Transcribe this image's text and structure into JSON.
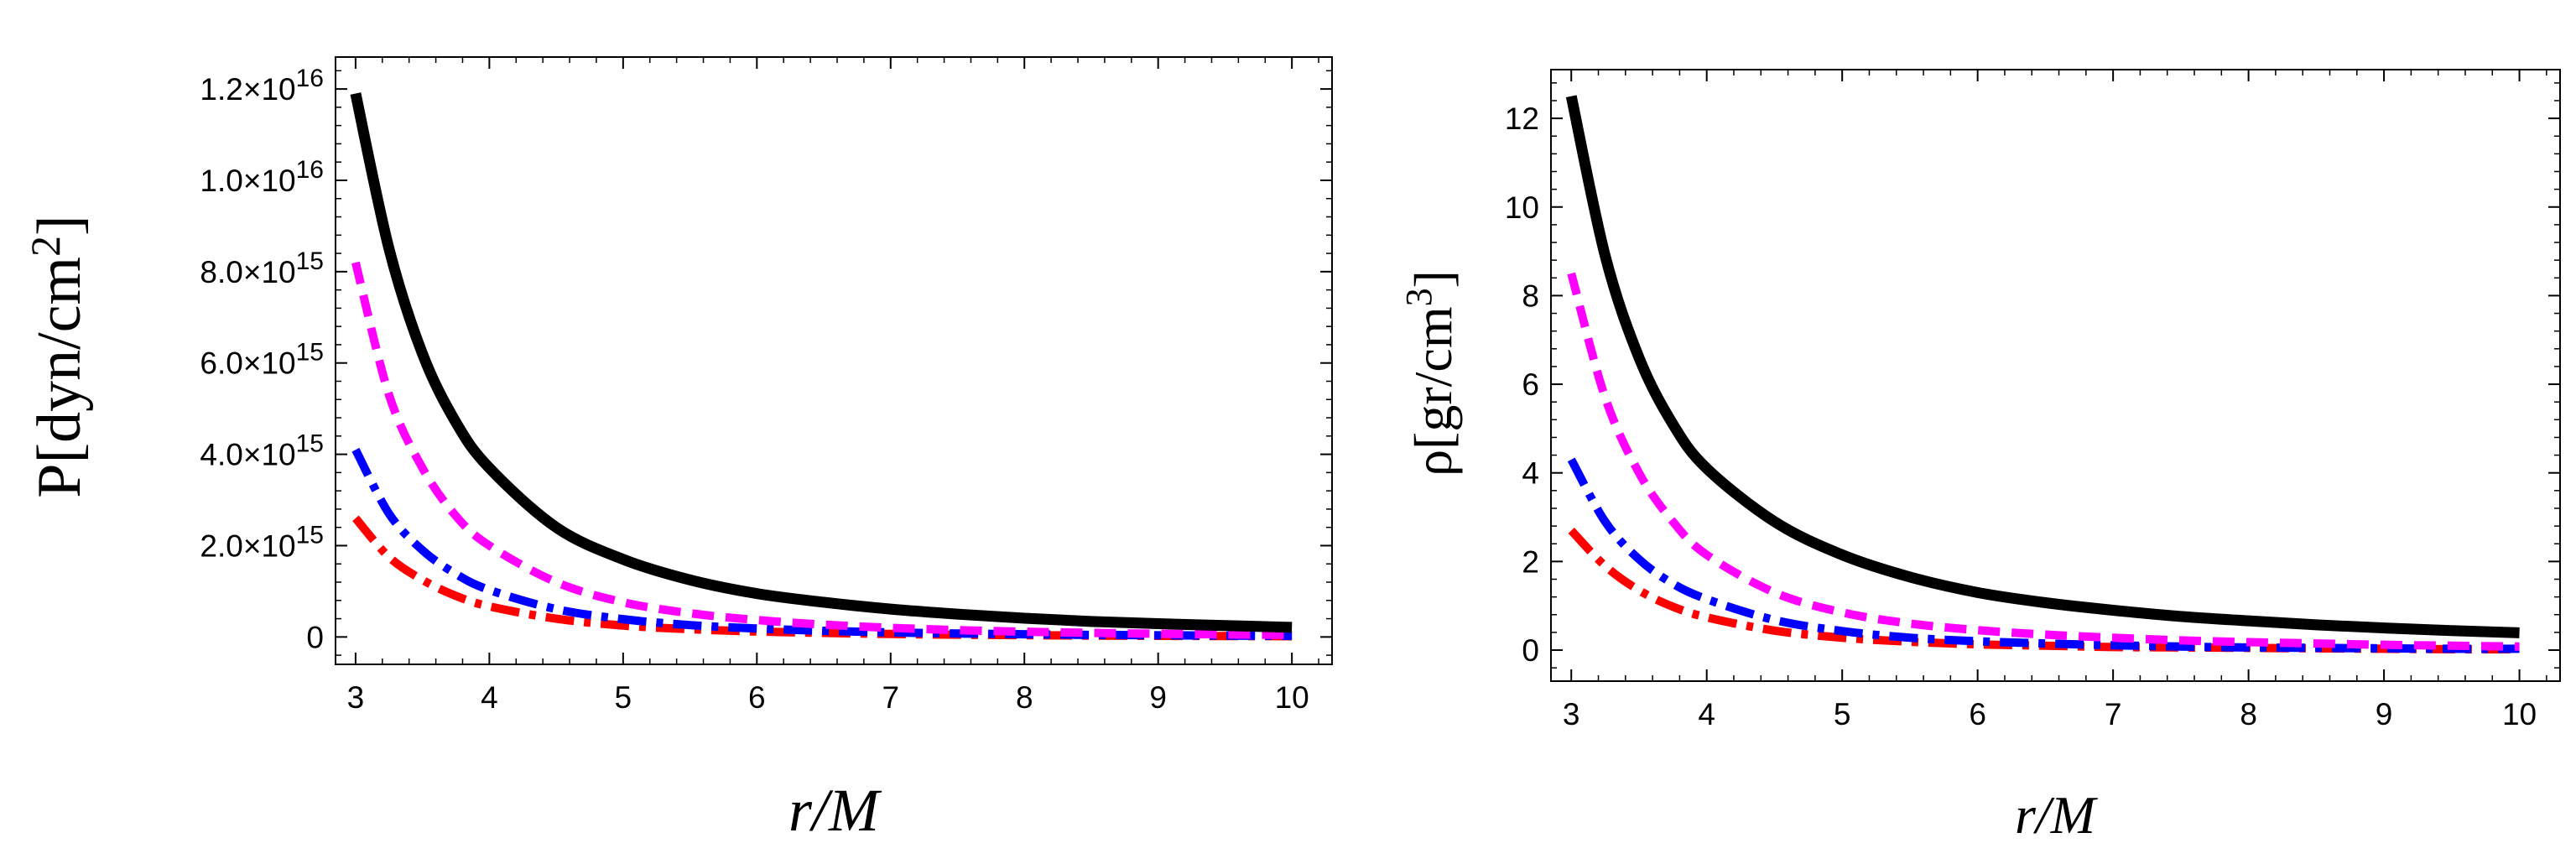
{
  "chart_data": [
    {
      "type": "line",
      "xlabel": "r/M",
      "ylabel": {
        "main": "P[dyn/cm",
        "sup": "2",
        "tail": "]"
      },
      "xlim": [
        2.85,
        10.3
      ],
      "ylim": [
        -600000000000000.0,
        1.27e+16
      ],
      "xticks": [
        3,
        4,
        5,
        6,
        7,
        8,
        9,
        10
      ],
      "xtick_labels": [
        "3",
        "4",
        "5",
        "6",
        "7",
        "8",
        "9",
        "10"
      ],
      "yticks": [
        0,
        2000000000000000.0,
        4000000000000000.0,
        6000000000000000.0,
        8000000000000000.0,
        1e+16,
        1.2e+16
      ],
      "ytick_labels": [
        {
          "mant": "0",
          "exp": ""
        },
        {
          "mant": "2.0×10",
          "exp": "15"
        },
        {
          "mant": "4.0×10",
          "exp": "15"
        },
        {
          "mant": "6.0×10",
          "exp": "15"
        },
        {
          "mant": "8.0×10",
          "exp": "15"
        },
        {
          "mant": "1.0×10",
          "exp": "16"
        },
        {
          "mant": "1.2×10",
          "exp": "16"
        }
      ],
      "x": [
        3,
        3.25,
        3.5,
        3.75,
        4,
        4.5,
        5,
        5.5,
        6,
        6.5,
        7,
        7.5,
        8,
        8.5,
        9,
        9.5,
        10
      ],
      "series": [
        {
          "color": "#000000",
          "style": "solid",
          "values": [
            1.19e+16,
            8500000000000000.0,
            6200000000000000.0,
            4700000000000000.0,
            3700000000000000.0,
            2400000000000000.0,
            1700000000000000.0,
            1250000000000000.0,
            950000000000000.0,
            760000000000000.0,
            610000000000000.0,
            500000000000000.0,
            410000000000000.0,
            340000000000000.0,
            290000000000000.0,
            250000000000000.0,
            210000000000000.0
          ]
        },
        {
          "color": "#ff00ff",
          "style": "dashed",
          "values": [
            8200000000000000.0,
            5300000000000000.0,
            3700000000000000.0,
            2650000000000000.0,
            2000000000000000.0,
            1200000000000000.0,
            760000000000000.0,
            520000000000000.0,
            370000000000000.0,
            270000000000000.0,
            200000000000000.0,
            150000000000000.0,
            115000000000000.0,
            90000000000000.0,
            70000000000000.0,
            55000000000000.0,
            45000000000000.0
          ]
        },
        {
          "color": "#0000ff",
          "style": "dashdot",
          "values": [
            4100000000000000.0,
            2700000000000000.0,
            1900000000000000.0,
            1380000000000000.0,
            1030000000000000.0,
            610000000000000.0,
            390000000000000.0,
            260000000000000.0,
            185000000000000.0,
            135000000000000.0,
            100000000000000.0,
            76000000000000.0,
            59000000000000.0,
            46000000000000.0,
            37000000000000.0,
            30000000000000.0,
            24000000000000.0
          ]
        },
        {
          "color": "#ff0000",
          "style": "dashdot",
          "values": [
            2600000000000000.0,
            1750000000000000.0,
            1250000000000000.0,
            900000000000000.0,
            670000000000000.0,
            400000000000000.0,
            250000000000000.0,
            170000000000000.0,
            120000000000000.0,
            88000000000000.0,
            65000000000000.0,
            50000000000000.0,
            39000000000000.0,
            30000000000000.0,
            24000000000000.0,
            20000000000000.0,
            16000000000000.0
          ]
        }
      ]
    },
    {
      "type": "line",
      "xlabel": "r/M",
      "ylabel": {
        "main": "ρ[gr/cm",
        "sup": "3",
        "tail": "]"
      },
      "xlim": [
        2.85,
        10.3
      ],
      "ylim": [
        -0.7,
        13.1
      ],
      "xticks": [
        3,
        4,
        5,
        6,
        7,
        8,
        9,
        10
      ],
      "xtick_labels": [
        "3",
        "4",
        "5",
        "6",
        "7",
        "8",
        "9",
        "10"
      ],
      "yticks": [
        0,
        2,
        4,
        6,
        8,
        10,
        12
      ],
      "ytick_labels": [
        {
          "mant": "0",
          "exp": ""
        },
        {
          "mant": "2",
          "exp": ""
        },
        {
          "mant": "4",
          "exp": ""
        },
        {
          "mant": "6",
          "exp": ""
        },
        {
          "mant": "8",
          "exp": ""
        },
        {
          "mant": "10",
          "exp": ""
        },
        {
          "mant": "12",
          "exp": ""
        }
      ],
      "x": [
        3,
        3.25,
        3.5,
        3.75,
        4,
        4.5,
        5,
        5.5,
        6,
        6.5,
        7,
        7.5,
        8,
        8.5,
        9,
        9.5,
        10
      ],
      "series": [
        {
          "color": "#000000",
          "style": "solid",
          "values": [
            12.5,
            8.9,
            6.6,
            5.1,
            4.1,
            2.9,
            2.15,
            1.65,
            1.3,
            1.07,
            0.9,
            0.76,
            0.66,
            0.57,
            0.5,
            0.44,
            0.39
          ]
        },
        {
          "color": "#ff00ff",
          "style": "dashed",
          "values": [
            8.5,
            5.7,
            4.0,
            2.9,
            2.15,
            1.3,
            0.85,
            0.6,
            0.45,
            0.35,
            0.28,
            0.22,
            0.18,
            0.15,
            0.12,
            0.1,
            0.08
          ]
        },
        {
          "color": "#0000ff",
          "style": "dashdot",
          "values": [
            4.3,
            2.9,
            2.05,
            1.5,
            1.15,
            0.68,
            0.43,
            0.28,
            0.2,
            0.15,
            0.11,
            0.08,
            0.06,
            0.05,
            0.04,
            0.03,
            0.03
          ]
        },
        {
          "color": "#ff0000",
          "style": "dashdot",
          "values": [
            2.7,
            1.9,
            1.35,
            0.98,
            0.74,
            0.44,
            0.28,
            0.19,
            0.13,
            0.1,
            0.07,
            0.06,
            0.05,
            0.04,
            0.03,
            0.02,
            0.02
          ]
        }
      ]
    }
  ]
}
